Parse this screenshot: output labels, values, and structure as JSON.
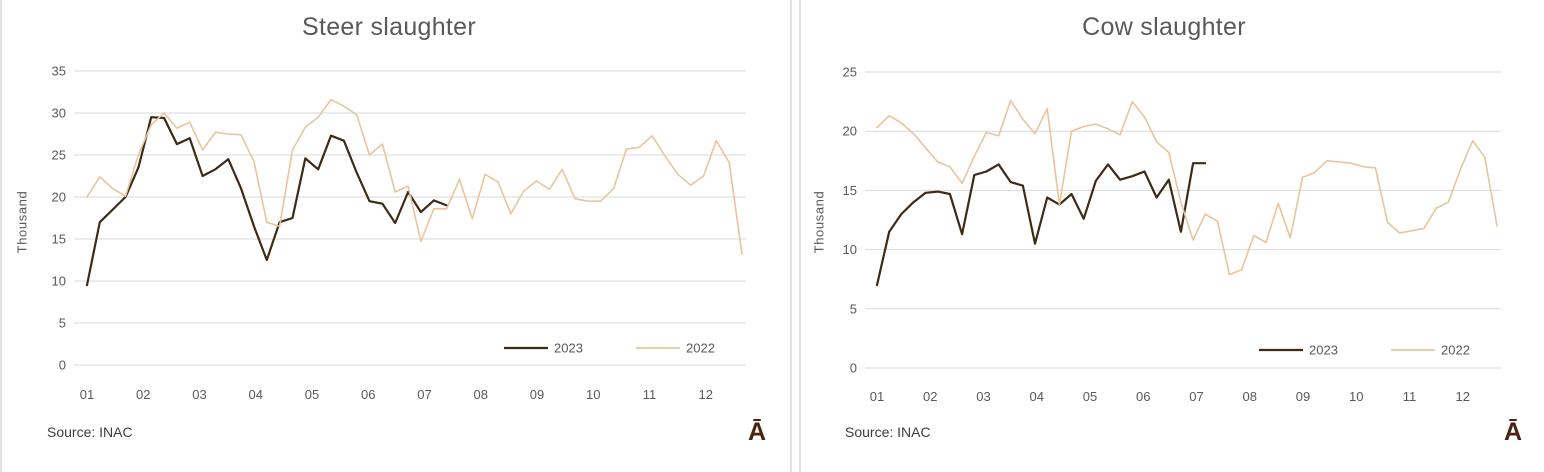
{
  "colors": {
    "series_2023": "#3F2A14",
    "series_2022": "#E9C49C",
    "gridline": "#D9D9D9",
    "axis_text": "#595959",
    "title_text": "#595959",
    "source_text": "#3D3D3D",
    "watermark_text": "#4A2410",
    "panel_border": "#E2E2E2",
    "background": "#FFFFFF"
  },
  "chart_data": [
    {
      "type": "line",
      "title": "Steer slaughter",
      "ylabel": "Thousand",
      "xlabel": "",
      "source": "Source: INAC",
      "watermark": "Ā",
      "x_unit": "weekly observations, months 01-12",
      "x_tick_labels": [
        "01",
        "02",
        "03",
        "04",
        "05",
        "06",
        "07",
        "08",
        "09",
        "10",
        "11",
        "12"
      ],
      "ylim": [
        0,
        35
      ],
      "yticks": [
        0,
        5,
        10,
        15,
        20,
        25,
        30,
        35
      ],
      "grid": true,
      "legend_position": "inside bottom-right",
      "series": [
        {
          "name": "2023",
          "color": "#3F2A14",
          "values": [
            9.5,
            17.0,
            18.5,
            20.0,
            23.5,
            29.5,
            29.4,
            26.3,
            27.0,
            22.5,
            23.3,
            24.5,
            21.0,
            16.5,
            12.5,
            17.0,
            17.5,
            24.6,
            23.3,
            27.3,
            26.7,
            22.9,
            19.5,
            19.2,
            16.9,
            20.6,
            18.2,
            19.6,
            19.0
          ]
        },
        {
          "name": "2022",
          "color": "#E9C49C",
          "values": [
            20.0,
            22.4,
            21.0,
            20.1,
            25.0,
            28.6,
            30.0,
            28.2,
            28.9,
            25.6,
            27.7,
            27.5,
            27.4,
            24.2,
            17.0,
            16.5,
            25.6,
            28.3,
            29.5,
            31.6,
            30.8,
            29.8,
            25.0,
            26.3,
            20.6,
            21.3,
            14.7,
            18.6,
            18.6,
            22.1,
            17.4,
            22.7,
            21.8,
            18.0,
            20.7,
            21.9,
            20.9,
            23.3,
            19.8,
            19.5,
            19.5,
            21.0,
            25.7,
            25.9,
            27.3,
            24.9,
            22.7,
            21.4,
            22.5,
            26.7,
            24.1,
            13.2
          ]
        }
      ]
    },
    {
      "type": "line",
      "title": "Cow slaughter",
      "ylabel": "Thousand",
      "xlabel": "",
      "source": "Source: INAC",
      "watermark": "Ā",
      "x_unit": "weekly observations, months 01-12",
      "x_tick_labels": [
        "01",
        "02",
        "03",
        "04",
        "05",
        "06",
        "07",
        "08",
        "09",
        "10",
        "11",
        "12"
      ],
      "ylim": [
        0,
        25
      ],
      "yticks": [
        0,
        5,
        10,
        15,
        20,
        25
      ],
      "grid": true,
      "legend_position": "inside bottom-right",
      "series": [
        {
          "name": "2023",
          "color": "#3F2A14",
          "values": [
            7.0,
            11.5,
            13.0,
            14.0,
            14.8,
            14.9,
            14.7,
            11.3,
            16.3,
            16.6,
            17.2,
            15.7,
            15.4,
            10.5,
            14.4,
            13.8,
            14.7,
            12.6,
            15.8,
            17.2,
            15.9,
            16.2,
            16.6,
            14.4,
            15.9,
            11.5,
            17.3,
            17.3
          ]
        },
        {
          "name": "2022",
          "color": "#E9C49C",
          "values": [
            20.3,
            21.3,
            20.7,
            19.8,
            18.6,
            17.4,
            17.0,
            15.6,
            17.9,
            19.9,
            19.6,
            22.6,
            21.0,
            19.8,
            21.9,
            13.8,
            20.0,
            20.4,
            20.6,
            20.2,
            19.7,
            22.5,
            21.2,
            19.1,
            18.2,
            14.0,
            10.8,
            13.0,
            12.4,
            7.9,
            8.3,
            11.2,
            10.6,
            13.9,
            11.0,
            16.1,
            16.5,
            17.5,
            17.4,
            17.3,
            17.0,
            16.9,
            12.3,
            11.4,
            11.6,
            11.8,
            13.5,
            14.0,
            16.8,
            19.2,
            17.8,
            12.0
          ]
        }
      ]
    }
  ]
}
